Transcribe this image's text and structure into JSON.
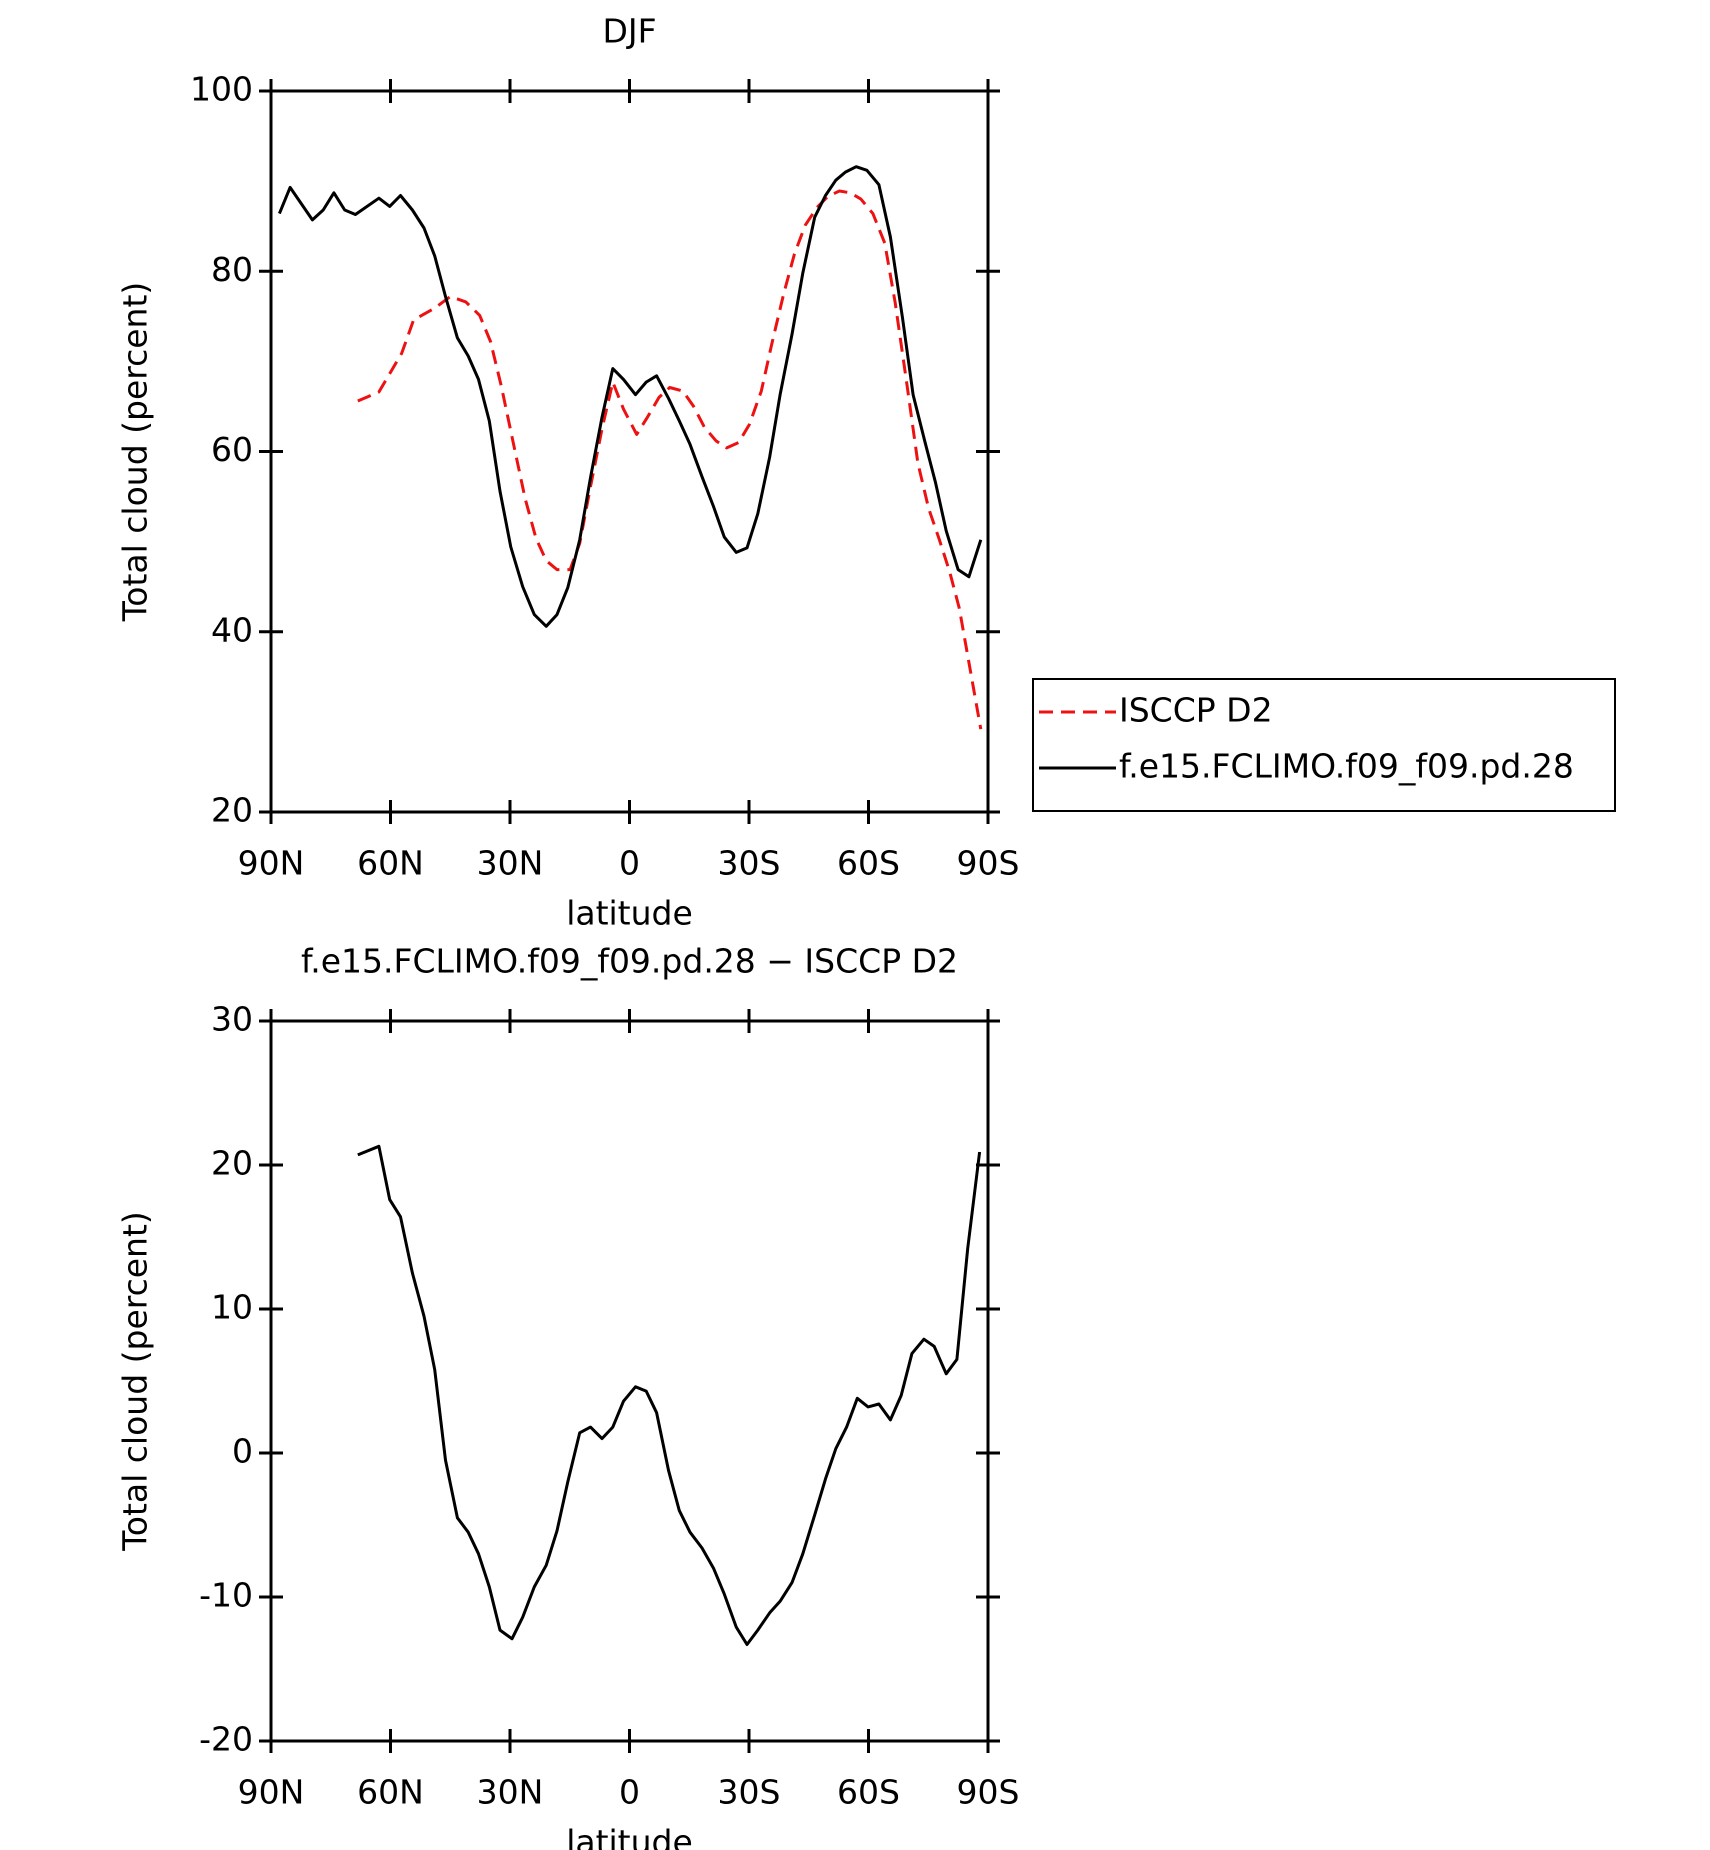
{
  "chart_data": [
    {
      "type": "line",
      "title": "DJF",
      "xlabel": "latitude",
      "ylabel": "Total cloud (percent)",
      "xlim": [
        90,
        -90
      ],
      "xticks": [
        {
          "value": 90,
          "label": "90N"
        },
        {
          "value": 60,
          "label": "60N"
        },
        {
          "value": 30,
          "label": "30N"
        },
        0,
        {
          "value": -30,
          "label": "30S"
        },
        {
          "value": -60,
          "label": "60S"
        },
        {
          "value": -90,
          "label": "90S"
        }
      ],
      "ylim": [
        20,
        100
      ],
      "yticks": [
        20,
        40,
        60,
        80,
        100
      ],
      "legend": "right",
      "series": [
        {
          "name": "ISCCP D2",
          "color": "#ee1111",
          "line_style": "dashed",
          "x": [
            68.2,
            62.9,
            57.2,
            54.2,
            48.9,
            45.0,
            41.1,
            37.6,
            34.9,
            32.2,
            29.2,
            26.2,
            23.5,
            20.9,
            18.2,
            14.9,
            12.5,
            9.8,
            6.9,
            4.2,
            1.5,
            -1.8,
            -4.5,
            -7.4,
            -10.1,
            -13.4,
            -16.1,
            -18.8,
            -21.7,
            -24.4,
            -27.4,
            -30.1,
            -33.1,
            -35.7,
            -38.7,
            -41.4,
            -44.1,
            -47.1,
            -49.8,
            -52.7,
            -55.4,
            -58.1,
            -61.1,
            -64.1,
            -66.7,
            -69.7,
            -72.4,
            -75.1,
            -77.8,
            -80.4,
            -82.8,
            -85.2,
            -88.2
          ],
          "values": [
            65.6,
            66.6,
            70.9,
            74.6,
            75.9,
            77.2,
            76.6,
            75.1,
            72.2,
            67.3,
            61.0,
            54.8,
            50.4,
            47.9,
            46.9,
            46.9,
            49.8,
            56.1,
            62.5,
            67.7,
            64.7,
            61.9,
            63.8,
            66.0,
            67.1,
            66.7,
            65.0,
            62.7,
            61.2,
            60.4,
            61.0,
            63.0,
            66.7,
            71.9,
            77.5,
            81.9,
            85.1,
            87.1,
            88.3,
            88.9,
            88.7,
            88.0,
            86.4,
            83.1,
            76.5,
            67.3,
            58.7,
            53.7,
            50.2,
            46.6,
            42.6,
            36.6,
            29.2
          ]
        },
        {
          "name": "f.e15.FCLIMO.f09_f09.pd.28",
          "color": "#000000",
          "line_style": "solid",
          "x": [
            87.9,
            85.2,
            79.6,
            76.9,
            74.2,
            71.5,
            68.8,
            62.9,
            60.2,
            57.5,
            54.5,
            51.6,
            48.9,
            46.2,
            43.2,
            40.5,
            37.9,
            35.2,
            32.5,
            29.8,
            26.8,
            23.9,
            20.9,
            18.2,
            15.5,
            12.5,
            9.8,
            6.9,
            4.2,
            1.5,
            -1.5,
            -4.2,
            -6.8,
            -9.8,
            -12.5,
            -15.2,
            -18.2,
            -21.1,
            -23.8,
            -26.8,
            -29.5,
            -32.2,
            -35.2,
            -37.8,
            -40.8,
            -43.5,
            -46.5,
            -49.2,
            -51.8,
            -54.2,
            -56.9,
            -59.6,
            -62.6,
            -65.5,
            -68.5,
            -71.2,
            -74.2,
            -76.8,
            -79.5,
            -82.5,
            -85.2,
            -88.2
          ],
          "values": [
            86.4,
            89.3,
            85.7,
            86.8,
            88.7,
            86.8,
            86.3,
            88.1,
            87.2,
            88.4,
            86.8,
            84.8,
            81.7,
            77.2,
            72.6,
            70.6,
            68.0,
            63.4,
            55.6,
            49.4,
            45.0,
            41.9,
            40.6,
            41.9,
            44.9,
            50.2,
            57.1,
            63.8,
            69.2,
            68.0,
            66.3,
            67.7,
            68.4,
            65.9,
            63.4,
            60.8,
            57.2,
            53.9,
            50.5,
            48.8,
            49.3,
            53.1,
            59.4,
            66.3,
            73.0,
            79.8,
            86.0,
            88.4,
            90.1,
            91.0,
            91.6,
            91.2,
            89.6,
            83.8,
            74.9,
            66.3,
            61.0,
            56.6,
            51.2,
            46.9,
            46.1,
            50.2
          ]
        }
      ]
    },
    {
      "type": "line",
      "title": "f.e15.FCLIMO.f09_f09.pd.28 − ISCCP D2",
      "xlabel": "latitude",
      "ylabel": "Total cloud (percent)",
      "xlim": [
        90,
        -90
      ],
      "xticks": [
        {
          "value": 90,
          "label": "90N"
        },
        {
          "value": 60,
          "label": "60N"
        },
        {
          "value": 30,
          "label": "30N"
        },
        0,
        {
          "value": -30,
          "label": "30S"
        },
        {
          "value": -60,
          "label": "60S"
        },
        {
          "value": -90,
          "label": "90S"
        }
      ],
      "ylim": [
        -20,
        30
      ],
      "yticks": [
        -20,
        -10,
        0,
        10,
        20,
        30
      ],
      "series": [
        {
          "color": "#000000",
          "line_style": "solid",
          "x": [
            68.2,
            62.9,
            60.2,
            57.5,
            54.5,
            51.6,
            48.9,
            46.2,
            43.2,
            40.5,
            37.9,
            35.2,
            32.5,
            29.5,
            26.8,
            23.9,
            20.9,
            18.2,
            15.5,
            12.5,
            9.8,
            6.9,
            4.2,
            1.5,
            -1.5,
            -4.2,
            -6.8,
            -9.8,
            -12.5,
            -15.2,
            -18.2,
            -21.1,
            -23.8,
            -26.8,
            -29.5,
            -32.2,
            -35.2,
            -37.8,
            -40.8,
            -43.5,
            -46.5,
            -49.2,
            -51.8,
            -54.5,
            -57.2,
            -59.9,
            -62.6,
            -65.5,
            -68.2,
            -70.9,
            -73.9,
            -76.5,
            -79.5,
            -82.2,
            -84.9,
            -87.9
          ],
          "values": [
            20.7,
            21.3,
            17.6,
            16.4,
            12.5,
            9.5,
            5.8,
            -0.5,
            -4.5,
            -5.5,
            -7.0,
            -9.3,
            -12.3,
            -12.9,
            -11.4,
            -9.3,
            -7.8,
            -5.4,
            -2.0,
            1.4,
            1.8,
            1.0,
            1.8,
            3.6,
            4.6,
            4.3,
            2.8,
            -1.2,
            -4.0,
            -5.5,
            -6.6,
            -8.0,
            -9.8,
            -12.1,
            -13.3,
            -12.3,
            -11.1,
            -10.3,
            -9.0,
            -7.0,
            -4.3,
            -1.8,
            0.3,
            1.8,
            3.8,
            3.2,
            3.4,
            2.3,
            4.0,
            6.9,
            7.9,
            7.4,
            5.5,
            6.5,
            14.2,
            20.9
          ]
        }
      ]
    }
  ]
}
